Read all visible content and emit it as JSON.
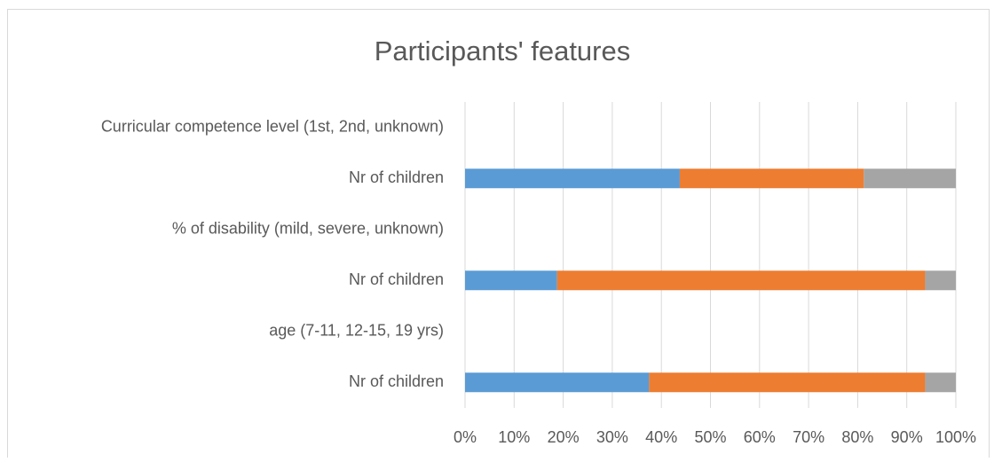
{
  "chart_data": {
    "type": "stacked_barh",
    "title": "Participants' features",
    "categories": [
      "Curricular competence level (1st, 2nd, unknown)",
      "Nr of children",
      "% of disability (mild, severe, unknown)",
      "Nr of children",
      "age (7-11, 12-15, 19 yrs)",
      "Nr of children"
    ],
    "series": [
      {
        "color": "#5b9bd5",
        "values": [
          null,
          43.75,
          null,
          18.75,
          null,
          37.5
        ]
      },
      {
        "color": "#ed7d31",
        "values": [
          null,
          37.5,
          null,
          75,
          null,
          56.25
        ]
      },
      {
        "color": "#a5a5a5",
        "values": [
          null,
          18.75,
          null,
          6.25,
          null,
          6.25
        ]
      }
    ],
    "xlim": [
      0,
      100
    ],
    "xticks": [
      {
        "value": 0,
        "label": "0%"
      },
      {
        "value": 10,
        "label": "10%"
      },
      {
        "value": 20,
        "label": "20%"
      },
      {
        "value": 30,
        "label": "30%"
      },
      {
        "value": 40,
        "label": "40%"
      },
      {
        "value": 50,
        "label": "50%"
      },
      {
        "value": 60,
        "label": "60%"
      },
      {
        "value": 70,
        "label": "70%"
      },
      {
        "value": 80,
        "label": "80%"
      },
      {
        "value": 90,
        "label": "90%"
      },
      {
        "value": 100,
        "label": "100%"
      }
    ],
    "grid": true
  }
}
